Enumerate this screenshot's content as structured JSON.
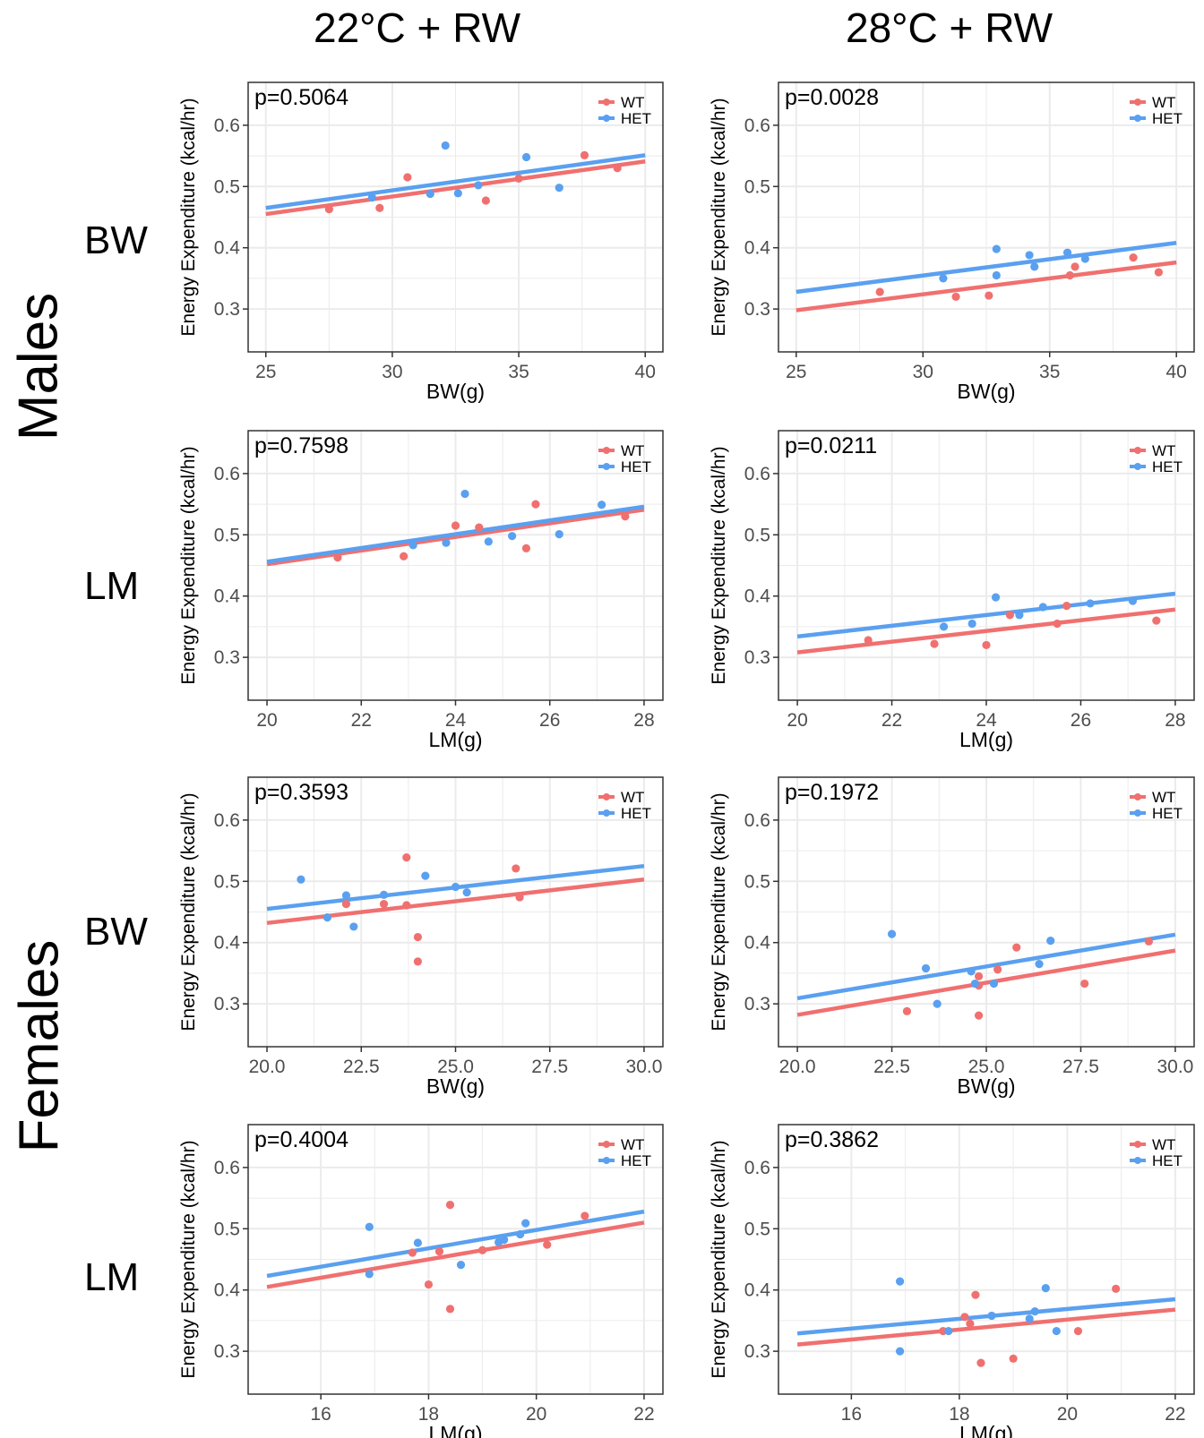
{
  "column_titles": [
    "22°C + RW",
    "28°C + RW"
  ],
  "sex_labels": [
    "Males",
    "Females"
  ],
  "row_labels": [
    "BW",
    "LM",
    "BW",
    "LM"
  ],
  "colors": {
    "WT": "#F07070",
    "HET": "#5AA0F0",
    "grid": "#EBEBEB"
  },
  "chart_data": [
    {
      "type": "scatter",
      "title": "p=0.5064",
      "xlabel": "BW(g)",
      "ylabel": "Energy Expenditure (kcal/hr)",
      "xlim": [
        24.3,
        40.7
      ],
      "ylim": [
        0.23,
        0.67
      ],
      "xticks": [
        25,
        30,
        35,
        40
      ],
      "xtick_labels": [
        "25",
        "30",
        "35",
        "40"
      ],
      "yticks": [
        0.3,
        0.4,
        0.5,
        0.6
      ],
      "ytick_labels": [
        "0.3",
        "0.4",
        "0.5",
        "0.6"
      ],
      "legend": "top-right",
      "series": [
        {
          "name": "WT",
          "points": [
            [
              27.5,
              0.463
            ],
            [
              29.5,
              0.465
            ],
            [
              30.6,
              0.515
            ],
            [
              33.7,
              0.477
            ],
            [
              35.0,
              0.513
            ],
            [
              37.6,
              0.551
            ],
            [
              38.9,
              0.53
            ]
          ],
          "fit": [
            [
              25,
              0.455
            ],
            [
              40,
              0.541
            ]
          ]
        },
        {
          "name": "HET",
          "points": [
            [
              29.2,
              0.482
            ],
            [
              31.5,
              0.488
            ],
            [
              32.1,
              0.567
            ],
            [
              32.6,
              0.489
            ],
            [
              33.4,
              0.502
            ],
            [
              35.3,
              0.548
            ],
            [
              36.6,
              0.498
            ]
          ],
          "fit": [
            [
              25,
              0.465
            ],
            [
              40,
              0.551
            ]
          ]
        }
      ]
    },
    {
      "type": "scatter",
      "title": "p=0.0028",
      "xlabel": "BW(g)",
      "ylabel": "Energy Expenditure (kcal/hr)",
      "xlim": [
        24.3,
        40.7
      ],
      "ylim": [
        0.23,
        0.67
      ],
      "xticks": [
        25,
        30,
        35,
        40
      ],
      "xtick_labels": [
        "25",
        "30",
        "35",
        "40"
      ],
      "yticks": [
        0.3,
        0.4,
        0.5,
        0.6
      ],
      "ytick_labels": [
        "0.3",
        "0.4",
        "0.5",
        "0.6"
      ],
      "legend": "top-right",
      "series": [
        {
          "name": "WT",
          "points": [
            [
              28.3,
              0.328
            ],
            [
              31.3,
              0.32
            ],
            [
              32.6,
              0.322
            ],
            [
              35.8,
              0.355
            ],
            [
              36.0,
              0.369
            ],
            [
              38.3,
              0.384
            ],
            [
              39.3,
              0.36
            ]
          ],
          "fit": [
            [
              25,
              0.298
            ],
            [
              40,
              0.376
            ]
          ]
        },
        {
          "name": "HET",
          "points": [
            [
              30.8,
              0.35
            ],
            [
              32.9,
              0.398
            ],
            [
              32.9,
              0.355
            ],
            [
              34.2,
              0.388
            ],
            [
              34.4,
              0.369
            ],
            [
              35.7,
              0.392
            ],
            [
              36.4,
              0.382
            ]
          ],
          "fit": [
            [
              25,
              0.328
            ],
            [
              40,
              0.408
            ]
          ]
        }
      ]
    },
    {
      "type": "scatter",
      "title": "p=0.7598",
      "xlabel": "LM(g)",
      "ylabel": "Energy Expenditure (kcal/hr)",
      "xlim": [
        19.6,
        28.4
      ],
      "ylim": [
        0.23,
        0.67
      ],
      "xticks": [
        20,
        22,
        24,
        26,
        28
      ],
      "xtick_labels": [
        "20",
        "22",
        "24",
        "26",
        "28"
      ],
      "yticks": [
        0.3,
        0.4,
        0.5,
        0.6
      ],
      "ytick_labels": [
        "0.3",
        "0.4",
        "0.5",
        "0.6"
      ],
      "legend": "top-right",
      "series": [
        {
          "name": "WT",
          "points": [
            [
              21.5,
              0.463
            ],
            [
              22.9,
              0.465
            ],
            [
              24.0,
              0.515
            ],
            [
              24.5,
              0.512
            ],
            [
              25.5,
              0.478
            ],
            [
              25.7,
              0.55
            ],
            [
              27.6,
              0.53
            ]
          ],
          "fit": [
            [
              20,
              0.452
            ],
            [
              28,
              0.541
            ]
          ]
        },
        {
          "name": "HET",
          "points": [
            [
              23.1,
              0.483
            ],
            [
              23.8,
              0.487
            ],
            [
              24.2,
              0.567
            ],
            [
              24.7,
              0.489
            ],
            [
              25.2,
              0.498
            ],
            [
              26.2,
              0.501
            ],
            [
              27.1,
              0.549
            ]
          ],
          "fit": [
            [
              20,
              0.456
            ],
            [
              28,
              0.546
            ]
          ]
        }
      ]
    },
    {
      "type": "scatter",
      "title": "p=0.0211",
      "xlabel": "LM(g)",
      "ylabel": "Energy Expenditure (kcal/hr)",
      "xlim": [
        19.6,
        28.4
      ],
      "ylim": [
        0.23,
        0.67
      ],
      "xticks": [
        20,
        22,
        24,
        26,
        28
      ],
      "xtick_labels": [
        "20",
        "22",
        "24",
        "26",
        "28"
      ],
      "yticks": [
        0.3,
        0.4,
        0.5,
        0.6
      ],
      "ytick_labels": [
        "0.3",
        "0.4",
        "0.5",
        "0.6"
      ],
      "legend": "top-right",
      "series": [
        {
          "name": "WT",
          "points": [
            [
              21.5,
              0.328
            ],
            [
              22.9,
              0.322
            ],
            [
              24.0,
              0.32
            ],
            [
              24.5,
              0.369
            ],
            [
              25.5,
              0.355
            ],
            [
              25.7,
              0.384
            ],
            [
              27.6,
              0.36
            ]
          ],
          "fit": [
            [
              20,
              0.308
            ],
            [
              28,
              0.378
            ]
          ]
        },
        {
          "name": "HET",
          "points": [
            [
              23.1,
              0.35
            ],
            [
              23.7,
              0.355
            ],
            [
              24.2,
              0.398
            ],
            [
              24.7,
              0.369
            ],
            [
              25.2,
              0.382
            ],
            [
              26.2,
              0.388
            ],
            [
              27.1,
              0.392
            ]
          ],
          "fit": [
            [
              20,
              0.334
            ],
            [
              28,
              0.404
            ]
          ]
        }
      ]
    },
    {
      "type": "scatter",
      "title": "p=0.3593",
      "xlabel": "BW(g)",
      "ylabel": "Energy Expenditure (kcal/hr)",
      "xlim": [
        19.5,
        30.5
      ],
      "ylim": [
        0.23,
        0.67
      ],
      "xticks": [
        20,
        22.5,
        25,
        27.5,
        30
      ],
      "xtick_labels": [
        "20.0",
        "22.5",
        "25.0",
        "27.5",
        "30.0"
      ],
      "yticks": [
        0.3,
        0.4,
        0.5,
        0.6
      ],
      "ytick_labels": [
        "0.3",
        "0.4",
        "0.5",
        "0.6"
      ],
      "legend": "top-right",
      "series": [
        {
          "name": "WT",
          "points": [
            [
              22.1,
              0.463
            ],
            [
              23.1,
              0.463
            ],
            [
              23.7,
              0.461
            ],
            [
              23.7,
              0.539
            ],
            [
              24.0,
              0.409
            ],
            [
              24.0,
              0.369
            ],
            [
              26.6,
              0.521
            ],
            [
              26.7,
              0.474
            ]
          ],
          "fit": [
            [
              20,
              0.432
            ],
            [
              30,
              0.503
            ]
          ]
        },
        {
          "name": "HET",
          "points": [
            [
              20.9,
              0.503
            ],
            [
              21.6,
              0.441
            ],
            [
              22.1,
              0.477
            ],
            [
              22.3,
              0.426
            ],
            [
              23.1,
              0.478
            ],
            [
              24.2,
              0.509
            ],
            [
              25.0,
              0.491
            ],
            [
              25.3,
              0.482
            ]
          ],
          "fit": [
            [
              20,
              0.455
            ],
            [
              30,
              0.525
            ]
          ]
        }
      ]
    },
    {
      "type": "scatter",
      "title": "p=0.1972",
      "xlabel": "BW(g)",
      "ylabel": "Energy Expenditure (kcal/hr)",
      "xlim": [
        19.5,
        30.5
      ],
      "ylim": [
        0.23,
        0.67
      ],
      "xticks": [
        20,
        22.5,
        25,
        27.5,
        30
      ],
      "xtick_labels": [
        "20.0",
        "22.5",
        "25.0",
        "27.5",
        "30.0"
      ],
      "yticks": [
        0.3,
        0.4,
        0.5,
        0.6
      ],
      "ytick_labels": [
        "0.3",
        "0.4",
        "0.5",
        "0.6"
      ],
      "legend": "top-right",
      "series": [
        {
          "name": "WT",
          "points": [
            [
              22.9,
              0.288
            ],
            [
              24.8,
              0.345
            ],
            [
              24.8,
              0.33
            ],
            [
              24.8,
              0.281
            ],
            [
              25.3,
              0.356
            ],
            [
              25.8,
              0.392
            ],
            [
              27.6,
              0.333
            ],
            [
              29.3,
              0.402
            ]
          ],
          "fit": [
            [
              20,
              0.282
            ],
            [
              30,
              0.387
            ]
          ]
        },
        {
          "name": "HET",
          "points": [
            [
              22.5,
              0.414
            ],
            [
              23.4,
              0.358
            ],
            [
              23.7,
              0.3
            ],
            [
              24.6,
              0.353
            ],
            [
              24.7,
              0.333
            ],
            [
              25.2,
              0.333
            ],
            [
              26.4,
              0.365
            ],
            [
              26.7,
              0.403
            ]
          ],
          "fit": [
            [
              20,
              0.309
            ],
            [
              30,
              0.413
            ]
          ]
        }
      ]
    },
    {
      "type": "scatter",
      "title": "p=0.4004",
      "xlabel": "LM(g)",
      "ylabel": "Energy Expenditure (kcal/hr)",
      "xlim": [
        14.65,
        22.35
      ],
      "ylim": [
        0.23,
        0.67
      ],
      "xticks": [
        16,
        18,
        20,
        22
      ],
      "xtick_labels": [
        "16",
        "18",
        "20",
        "22"
      ],
      "yticks": [
        0.3,
        0.4,
        0.5,
        0.6
      ],
      "ytick_labels": [
        "0.3",
        "0.4",
        "0.5",
        "0.6"
      ],
      "legend": "top-right",
      "series": [
        {
          "name": "WT",
          "points": [
            [
              17.7,
              0.461
            ],
            [
              18.0,
              0.409
            ],
            [
              18.2,
              0.463
            ],
            [
              18.4,
              0.539
            ],
            [
              18.4,
              0.369
            ],
            [
              19.0,
              0.465
            ],
            [
              20.2,
              0.474
            ],
            [
              20.9,
              0.521
            ]
          ],
          "fit": [
            [
              15,
              0.405
            ],
            [
              22,
              0.51
            ]
          ]
        },
        {
          "name": "HET",
          "points": [
            [
              16.9,
              0.426
            ],
            [
              16.9,
              0.503
            ],
            [
              17.8,
              0.477
            ],
            [
              18.6,
              0.441
            ],
            [
              19.3,
              0.478
            ],
            [
              19.4,
              0.482
            ],
            [
              19.7,
              0.491
            ],
            [
              19.8,
              0.509
            ]
          ],
          "fit": [
            [
              15,
              0.423
            ],
            [
              22,
              0.528
            ]
          ]
        }
      ]
    },
    {
      "type": "scatter",
      "title": "p=0.3862",
      "xlabel": "LM(g)",
      "ylabel": "Energy Expenditure (kcal/hr)",
      "xlim": [
        14.65,
        22.35
      ],
      "ylim": [
        0.23,
        0.67
      ],
      "xticks": [
        16,
        18,
        20,
        22
      ],
      "xtick_labels": [
        "16",
        "18",
        "20",
        "22"
      ],
      "yticks": [
        0.3,
        0.4,
        0.5,
        0.6
      ],
      "ytick_labels": [
        "0.3",
        "0.4",
        "0.5",
        "0.6"
      ],
      "legend": "top-right",
      "series": [
        {
          "name": "WT",
          "points": [
            [
              17.7,
              0.333
            ],
            [
              18.1,
              0.356
            ],
            [
              18.2,
              0.345
            ],
            [
              18.3,
              0.392
            ],
            [
              18.4,
              0.281
            ],
            [
              19.0,
              0.288
            ],
            [
              20.2,
              0.333
            ],
            [
              20.9,
              0.402
            ]
          ],
          "fit": [
            [
              15,
              0.311
            ],
            [
              22,
              0.368
            ]
          ]
        },
        {
          "name": "HET",
          "points": [
            [
              16.9,
              0.414
            ],
            [
              16.9,
              0.3
            ],
            [
              17.8,
              0.333
            ],
            [
              18.6,
              0.358
            ],
            [
              19.3,
              0.353
            ],
            [
              19.4,
              0.365
            ],
            [
              19.6,
              0.403
            ],
            [
              19.8,
              0.333
            ]
          ],
          "fit": [
            [
              15,
              0.329
            ],
            [
              22,
              0.385
            ]
          ]
        }
      ]
    }
  ]
}
